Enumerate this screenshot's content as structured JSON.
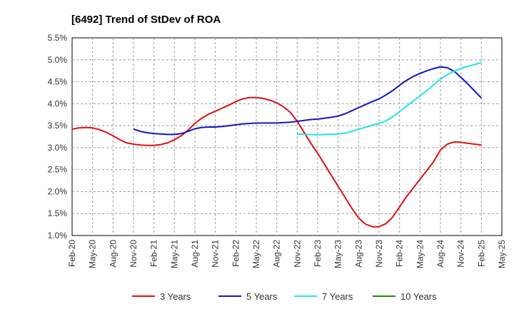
{
  "chart_data": {
    "type": "line",
    "title": "[6492]  Trend of StDev of ROA",
    "xlabel": "",
    "ylabel": "",
    "ylim": [
      1.0,
      5.5
    ],
    "y_ticks": [
      "1.0%",
      "1.5%",
      "2.0%",
      "2.5%",
      "3.0%",
      "3.5%",
      "4.0%",
      "4.5%",
      "5.0%",
      "5.5%"
    ],
    "x_ticks": [
      "Feb-20",
      "May-20",
      "Aug-20",
      "Nov-20",
      "Feb-21",
      "May-21",
      "Aug-21",
      "Nov-21",
      "Feb-22",
      "May-22",
      "Aug-22",
      "Nov-22",
      "Feb-23",
      "May-23",
      "Aug-23",
      "Nov-23",
      "Feb-24",
      "May-24",
      "Aug-24",
      "Nov-24",
      "Feb-25",
      "May-25"
    ],
    "grid": true,
    "legend_position": "bottom",
    "series": [
      {
        "name": "3 Years",
        "color": "#dd1111",
        "points": [
          [
            "Feb-20",
            3.42
          ],
          [
            "Mar-20",
            3.45
          ],
          [
            "Apr-20",
            3.46
          ],
          [
            "May-20",
            3.45
          ],
          [
            "Jun-20",
            3.41
          ],
          [
            "Jul-20",
            3.35
          ],
          [
            "Aug-20",
            3.27
          ],
          [
            "Sep-20",
            3.18
          ],
          [
            "Oct-20",
            3.11
          ],
          [
            "Nov-20",
            3.08
          ],
          [
            "Dec-20",
            3.06
          ],
          [
            "Jan-21",
            3.05
          ],
          [
            "Feb-21",
            3.05
          ],
          [
            "Mar-21",
            3.07
          ],
          [
            "Apr-21",
            3.11
          ],
          [
            "May-21",
            3.18
          ],
          [
            "Jun-21",
            3.27
          ],
          [
            "Jul-21",
            3.4
          ],
          [
            "Aug-21",
            3.55
          ],
          [
            "Sep-21",
            3.67
          ],
          [
            "Oct-21",
            3.76
          ],
          [
            "Nov-21",
            3.83
          ],
          [
            "Dec-21",
            3.9
          ],
          [
            "Jan-22",
            3.97
          ],
          [
            "Feb-22",
            4.05
          ],
          [
            "Mar-22",
            4.11
          ],
          [
            "Apr-22",
            4.14
          ],
          [
            "May-22",
            4.14
          ],
          [
            "Jun-22",
            4.12
          ],
          [
            "Jul-22",
            4.08
          ],
          [
            "Aug-22",
            4.02
          ],
          [
            "Sep-22",
            3.93
          ],
          [
            "Oct-22",
            3.8
          ],
          [
            "Nov-22",
            3.6
          ],
          [
            "Dec-22",
            3.35
          ],
          [
            "Jan-23",
            3.1
          ],
          [
            "Feb-23",
            2.87
          ],
          [
            "Mar-23",
            2.62
          ],
          [
            "Apr-23",
            2.37
          ],
          [
            "May-23",
            2.12
          ],
          [
            "Jun-23",
            1.87
          ],
          [
            "Jul-23",
            1.62
          ],
          [
            "Aug-23",
            1.4
          ],
          [
            "Sep-23",
            1.26
          ],
          [
            "Oct-23",
            1.2
          ],
          [
            "Nov-23",
            1.2
          ],
          [
            "Dec-23",
            1.27
          ],
          [
            "Jan-24",
            1.42
          ],
          [
            "Feb-24",
            1.65
          ],
          [
            "Mar-24",
            1.88
          ],
          [
            "Apr-24",
            2.08
          ],
          [
            "May-24",
            2.28
          ],
          [
            "Jun-24",
            2.48
          ],
          [
            "Jul-24",
            2.68
          ],
          [
            "Aug-24",
            2.95
          ],
          [
            "Sep-24",
            3.08
          ],
          [
            "Oct-24",
            3.13
          ],
          [
            "Nov-24",
            3.12
          ],
          [
            "Dec-24",
            3.1
          ],
          [
            "Jan-25",
            3.08
          ],
          [
            "Feb-25",
            3.06
          ]
        ]
      },
      {
        "name": "5 Years",
        "color": "#1515c0",
        "points": [
          [
            "Nov-20",
            3.42
          ],
          [
            "Dec-20",
            3.37
          ],
          [
            "Jan-21",
            3.34
          ],
          [
            "Feb-21",
            3.32
          ],
          [
            "Mar-21",
            3.31
          ],
          [
            "Apr-21",
            3.3
          ],
          [
            "May-21",
            3.3
          ],
          [
            "Jun-21",
            3.32
          ],
          [
            "Jul-21",
            3.37
          ],
          [
            "Aug-21",
            3.43
          ],
          [
            "Sep-21",
            3.46
          ],
          [
            "Oct-21",
            3.47
          ],
          [
            "Nov-21",
            3.47
          ],
          [
            "Dec-21",
            3.48
          ],
          [
            "Jan-22",
            3.5
          ],
          [
            "Feb-22",
            3.52
          ],
          [
            "Mar-22",
            3.54
          ],
          [
            "Apr-22",
            3.55
          ],
          [
            "May-22",
            3.56
          ],
          [
            "Jun-22",
            3.56
          ],
          [
            "Jul-22",
            3.56
          ],
          [
            "Aug-22",
            3.56
          ],
          [
            "Sep-22",
            3.57
          ],
          [
            "Oct-22",
            3.58
          ],
          [
            "Nov-22",
            3.6
          ],
          [
            "Dec-22",
            3.62
          ],
          [
            "Jan-23",
            3.64
          ],
          [
            "Feb-23",
            3.65
          ],
          [
            "Mar-23",
            3.67
          ],
          [
            "Apr-23",
            3.69
          ],
          [
            "May-23",
            3.72
          ],
          [
            "Jun-23",
            3.77
          ],
          [
            "Jul-23",
            3.84
          ],
          [
            "Aug-23",
            3.91
          ],
          [
            "Sep-23",
            3.98
          ],
          [
            "Oct-23",
            4.05
          ],
          [
            "Nov-23",
            4.11
          ],
          [
            "Dec-23",
            4.2
          ],
          [
            "Jan-24",
            4.3
          ],
          [
            "Feb-24",
            4.42
          ],
          [
            "Mar-24",
            4.53
          ],
          [
            "Apr-24",
            4.62
          ],
          [
            "May-24",
            4.69
          ],
          [
            "Jun-24",
            4.75
          ],
          [
            "Jul-24",
            4.8
          ],
          [
            "Aug-24",
            4.84
          ],
          [
            "Sep-24",
            4.82
          ],
          [
            "Oct-24",
            4.74
          ],
          [
            "Nov-24",
            4.6
          ],
          [
            "Dec-24",
            4.45
          ],
          [
            "Jan-25",
            4.29
          ],
          [
            "Feb-25",
            4.13
          ]
        ]
      },
      {
        "name": "7 Years",
        "color": "#22e5e5",
        "points": [
          [
            "Nov-22",
            3.31
          ],
          [
            "Dec-22",
            3.3
          ],
          [
            "Jan-23",
            3.3
          ],
          [
            "Feb-23",
            3.29
          ],
          [
            "Mar-23",
            3.3
          ],
          [
            "Apr-23",
            3.3
          ],
          [
            "May-23",
            3.31
          ],
          [
            "Jun-23",
            3.33
          ],
          [
            "Jul-23",
            3.37
          ],
          [
            "Aug-23",
            3.42
          ],
          [
            "Sep-23",
            3.46
          ],
          [
            "Oct-23",
            3.51
          ],
          [
            "Nov-23",
            3.55
          ],
          [
            "Dec-23",
            3.61
          ],
          [
            "Jan-24",
            3.7
          ],
          [
            "Feb-24",
            3.82
          ],
          [
            "Mar-24",
            3.94
          ],
          [
            "Apr-24",
            4.06
          ],
          [
            "May-24",
            4.18
          ],
          [
            "Jun-24",
            4.3
          ],
          [
            "Jul-24",
            4.43
          ],
          [
            "Aug-24",
            4.56
          ],
          [
            "Sep-24",
            4.66
          ],
          [
            "Oct-24",
            4.74
          ],
          [
            "Nov-24",
            4.8
          ],
          [
            "Dec-24",
            4.85
          ],
          [
            "Jan-25",
            4.89
          ],
          [
            "Feb-25",
            4.94
          ]
        ]
      },
      {
        "name": "10 Years",
        "color": "#1a8a1a",
        "points": []
      }
    ]
  }
}
